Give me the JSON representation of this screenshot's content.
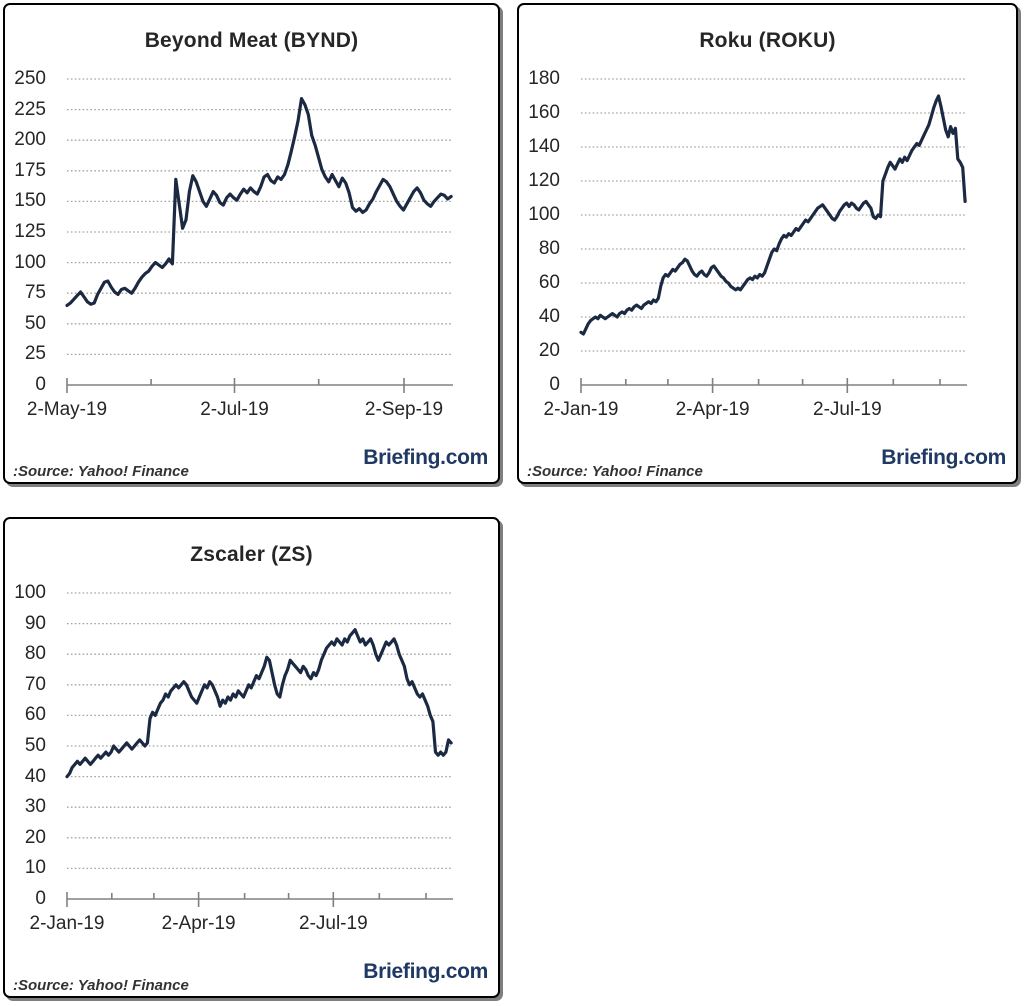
{
  "branding": {
    "source": ":Source: Yahoo! Finance",
    "logo": "Briefing.com"
  },
  "colors": {
    "line": "#1b2942",
    "grid": "#a3a3a3",
    "axis": "#808080",
    "text": "#262626",
    "logo_navy": "#1f3864",
    "border": "#000000"
  },
  "chart_data": [
    {
      "type": "line",
      "title": "Beyond Meat (BYND)",
      "xlabel": "",
      "ylabel": "",
      "ylim": [
        0,
        250
      ],
      "yticks": [
        250,
        225,
        200,
        175,
        150,
        125,
        100,
        75,
        50,
        25,
        0
      ],
      "grid": "dotted-horizontal",
      "legend": false,
      "x_axis": {
        "major_ticks": [
          {
            "pos": 0.0,
            "label": "2-May-19"
          },
          {
            "pos": 0.434,
            "label": "2-Jul-19"
          },
          {
            "pos": 0.873,
            "label": "2-Sep-19"
          }
        ],
        "minor_ticks": [
          0.218,
          0.652
        ]
      },
      "series": [
        {
          "name": "BYND",
          "xend": 0.995,
          "values": [
            65,
            67,
            70,
            73,
            76,
            72,
            68,
            66,
            67,
            74,
            79,
            84,
            85,
            80,
            76,
            74,
            78,
            79,
            77,
            75,
            79,
            84,
            88,
            91,
            93,
            97,
            100,
            98,
            96,
            99,
            103,
            99,
            168,
            148,
            128,
            135,
            158,
            171,
            166,
            158,
            150,
            146,
            152,
            158,
            155,
            149,
            147,
            153,
            156,
            153,
            151,
            156,
            160,
            157,
            161,
            158,
            156,
            162,
            170,
            172,
            167,
            165,
            170,
            168,
            172,
            180,
            191,
            203,
            216,
            234,
            229,
            221,
            204,
            196,
            186,
            176,
            170,
            166,
            172,
            167,
            162,
            169,
            165,
            157,
            145,
            142,
            144,
            141,
            143,
            148,
            152,
            158,
            163,
            168,
            166,
            162,
            156,
            150,
            146,
            143,
            148,
            153,
            158,
            161,
            157,
            151,
            148,
            146,
            150,
            153,
            156,
            155,
            152,
            154
          ]
        }
      ]
    },
    {
      "type": "line",
      "title": "Roku (ROKU)",
      "xlabel": "",
      "ylabel": "",
      "ylim": [
        0,
        180
      ],
      "yticks": [
        180,
        160,
        140,
        120,
        100,
        80,
        60,
        40,
        20,
        0
      ],
      "grid": "dotted-horizontal",
      "legend": false,
      "x_axis": {
        "major_ticks": [
          {
            "pos": 0.0,
            "label": "2-Jan-19"
          },
          {
            "pos": 0.341,
            "label": "2-Apr-19"
          },
          {
            "pos": 0.69,
            "label": "2-Jul-19"
          }
        ],
        "minor_ticks": [
          0.116,
          0.225,
          0.46,
          0.574,
          0.809,
          0.93
        ]
      },
      "series": [
        {
          "name": "ROKU",
          "xend": 0.995,
          "values": [
            31,
            30,
            33,
            36,
            38,
            39,
            40,
            39,
            41,
            40,
            39,
            40,
            41,
            42,
            41,
            40,
            42,
            43,
            42,
            44,
            45,
            44,
            46,
            47,
            46,
            45,
            47,
            48,
            49,
            48,
            50,
            49,
            51,
            58,
            63,
            65,
            64,
            66,
            68,
            67,
            69,
            71,
            72,
            74,
            73,
            70,
            67,
            65,
            64,
            66,
            67,
            65,
            64,
            66,
            69,
            70,
            68,
            66,
            64,
            63,
            61,
            60,
            58,
            57,
            56,
            57,
            56,
            58,
            60,
            62,
            63,
            62,
            64,
            63,
            65,
            64,
            66,
            70,
            74,
            78,
            80,
            79,
            83,
            86,
            88,
            87,
            89,
            88,
            90,
            92,
            91,
            93,
            95,
            97,
            96,
            98,
            100,
            102,
            104,
            105,
            106,
            104,
            102,
            100,
            98,
            97,
            99,
            102,
            104,
            106,
            107,
            105,
            107,
            106,
            104,
            103,
            105,
            107,
            108,
            106,
            104,
            99,
            98,
            100,
            99,
            120,
            124,
            128,
            131,
            129,
            127,
            130,
            133,
            131,
            134,
            132,
            135,
            138,
            140,
            142,
            141,
            144,
            147,
            150,
            153,
            158,
            163,
            167,
            170,
            164,
            157,
            150,
            146,
            152,
            148,
            151,
            133,
            131,
            128,
            108
          ]
        }
      ]
    },
    {
      "type": "line",
      "title": "Zscaler (ZS)",
      "xlabel": "",
      "ylabel": "",
      "ylim": [
        0,
        100
      ],
      "yticks": [
        100,
        90,
        80,
        70,
        60,
        50,
        40,
        30,
        20,
        10,
        0
      ],
      "grid": "dotted-horizontal",
      "legend": false,
      "x_axis": {
        "major_ticks": [
          {
            "pos": 0.0,
            "label": "2-Jan-19"
          },
          {
            "pos": 0.341,
            "label": "2-Apr-19"
          },
          {
            "pos": 0.69,
            "label": "2-Jul-19"
          }
        ],
        "minor_ticks": [
          0.116,
          0.225,
          0.46,
          0.574,
          0.809,
          0.93
        ]
      },
      "series": [
        {
          "name": "ZS",
          "xend": 0.995,
          "values": [
            40,
            41,
            43,
            44,
            45,
            44,
            45,
            46,
            45,
            44,
            45,
            46,
            47,
            46,
            47,
            48,
            47,
            48,
            50,
            49,
            48,
            49,
            50,
            51,
            50,
            49,
            50,
            51,
            52,
            51,
            50,
            51,
            59,
            61,
            60,
            62,
            64,
            65,
            67,
            66,
            68,
            69,
            70,
            69,
            70,
            71,
            70,
            68,
            66,
            65,
            64,
            66,
            68,
            70,
            69,
            71,
            70,
            68,
            66,
            63,
            65,
            64,
            66,
            65,
            67,
            66,
            68,
            67,
            66,
            68,
            70,
            69,
            71,
            73,
            72,
            74,
            76,
            79,
            78,
            74,
            70,
            67,
            66,
            70,
            73,
            75,
            78,
            77,
            76,
            75,
            74,
            76,
            75,
            73,
            72,
            74,
            73,
            75,
            78,
            80,
            82,
            83,
            84,
            83,
            85,
            84,
            83,
            85,
            84,
            86,
            87,
            88,
            86,
            84,
            85,
            83,
            84,
            85,
            83,
            80,
            78,
            80,
            82,
            84,
            83,
            84,
            85,
            83,
            80,
            78,
            76,
            72,
            70,
            71,
            69,
            67,
            66,
            67,
            65,
            63,
            60,
            58,
            48,
            47,
            48,
            47,
            48,
            52,
            51
          ]
        }
      ]
    }
  ]
}
